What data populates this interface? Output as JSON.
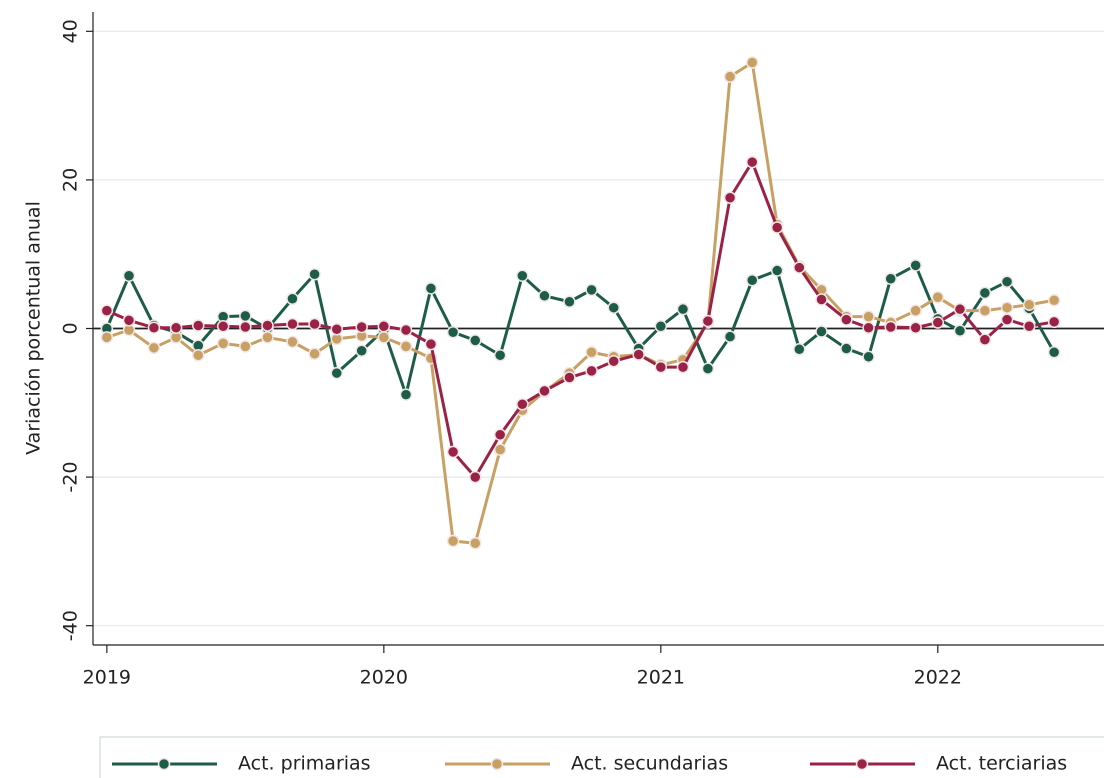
{
  "chart_data": {
    "type": "line",
    "ylabel": "Variación porcentual anual",
    "x": [
      2019.0,
      2019.08,
      2019.17,
      2019.25,
      2019.33,
      2019.42,
      2019.5,
      2019.58,
      2019.67,
      2019.75,
      2019.83,
      2019.92,
      2020.0,
      2020.08,
      2020.17,
      2020.25,
      2020.33,
      2020.42,
      2020.5,
      2020.58,
      2020.67,
      2020.75,
      2020.83,
      2020.92,
      2021.0,
      2021.08,
      2021.17,
      2021.25,
      2021.33,
      2021.42,
      2021.5,
      2021.58,
      2021.67,
      2021.75,
      2021.83,
      2021.92,
      2022.0,
      2022.08,
      2022.17,
      2022.25,
      2022.33,
      2022.42
    ],
    "series": [
      {
        "name": "Act. primarias",
        "color": "#1e5c4a",
        "values": [
          0,
          7.1,
          0.4,
          -0.5,
          -2.3,
          1.6,
          1.7,
          0,
          4,
          7.3,
          -6,
          -3,
          -0.2,
          -8.9,
          5.4,
          -0.5,
          -1.6,
          -3.6,
          7.1,
          4.4,
          3.6,
          5.2,
          2.8,
          -2.7,
          0.3,
          2.6,
          -5.4,
          -1.1,
          6.5,
          7.8,
          -2.8,
          -0.4,
          -2.7,
          -3.8,
          6.7,
          8.5,
          1.3,
          -0.3,
          4.8,
          6.3,
          2.7,
          -3.2
        ]
      },
      {
        "name": "Act. secundarias",
        "color": "#c9a063",
        "values": [
          -1.2,
          -0.2,
          -2.6,
          -1.2,
          -3.6,
          -2,
          -2.4,
          -1.2,
          -1.8,
          -3.4,
          -1.4,
          -1,
          -1.2,
          -2.4,
          -4,
          -28.6,
          -28.9,
          -16.3,
          -11,
          -8.5,
          -6,
          -3.2,
          -3.8,
          -3.5,
          -4.9,
          -4.2,
          0.8,
          33.9,
          35.8,
          14,
          8.4,
          5.2,
          1.6,
          1.6,
          0.8,
          2.4,
          4.2,
          2.4,
          2.4,
          2.8,
          3.2,
          3.8
        ]
      },
      {
        "name": "Act. terciarias",
        "color": "#9b2247",
        "values": [
          2.4,
          1.1,
          0.1,
          0.1,
          0.4,
          0.3,
          0.2,
          0.4,
          0.6,
          0.6,
          -0.1,
          0.2,
          0.3,
          -0.2,
          -2.1,
          -16.6,
          -20,
          -14.3,
          -10.2,
          -8.4,
          -6.6,
          -5.7,
          -4.4,
          -3.5,
          -5.2,
          -5.2,
          1,
          17.6,
          22.4,
          13.6,
          8.2,
          3.9,
          1.2,
          0.1,
          0.2,
          0.1,
          0.8,
          2.6,
          -1.5,
          1.2,
          0.3,
          0.9
        ]
      }
    ],
    "xlim": [
      2018.95,
      2022.6
    ],
    "xticks": [
      2019,
      2020,
      2021,
      2022
    ],
    "ylim": [
      -42.6,
      42.6
    ],
    "yticks": [
      -40,
      -20,
      0,
      20,
      40
    ],
    "grid": true,
    "legend": "bottom"
  }
}
